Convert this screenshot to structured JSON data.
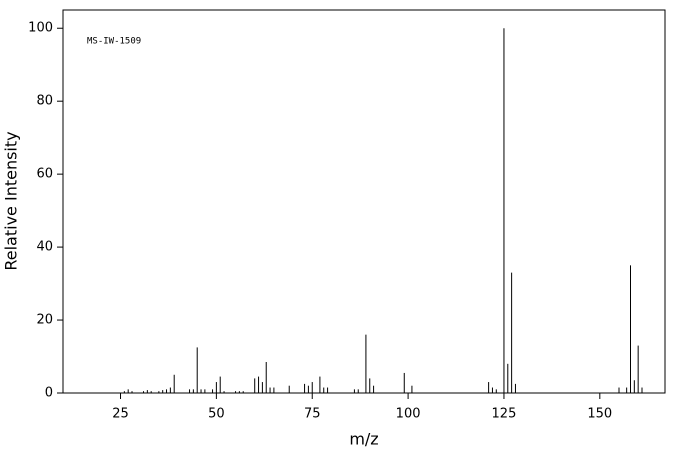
{
  "chart_data": {
    "type": "stick",
    "annotation": "MS-IW-1509",
    "x_label": "m/z",
    "y_label": "Relative Intensity",
    "xlim": [
      10,
      167
    ],
    "ylim": [
      0,
      105
    ],
    "xticks": [
      25,
      50,
      75,
      100,
      125,
      150
    ],
    "yticks": [
      0,
      20,
      40,
      60,
      80,
      100
    ],
    "color": "#000000",
    "x": [
      26,
      27,
      28,
      31,
      32,
      33,
      35,
      36,
      37,
      38,
      39,
      43,
      44,
      45,
      46,
      47,
      49,
      50,
      51,
      52,
      55,
      56,
      57,
      60,
      61,
      62,
      63,
      64,
      65,
      69,
      73,
      74,
      75,
      77,
      78,
      79,
      86,
      87,
      89,
      90,
      91,
      99,
      101,
      121,
      122,
      123,
      125,
      126,
      127,
      128,
      155,
      157,
      158,
      159,
      160,
      161
    ],
    "values": [
      0.5,
      1,
      0.5,
      0.5,
      0.8,
      0.5,
      0.5,
      0.8,
      1,
      1.5,
      5,
      1,
      1,
      12.5,
      1,
      1,
      1,
      3,
      4.5,
      0.5,
      0.5,
      0.5,
      0.5,
      4,
      4.5,
      3,
      8.5,
      1.5,
      1.5,
      2,
      2.5,
      2,
      3,
      4.5,
      1.5,
      1.5,
      1,
      1,
      16,
      4,
      2,
      5.5,
      2,
      3,
      1.5,
      1,
      100,
      8,
      33,
      2.5,
      1.5,
      1.5,
      35,
      3.5,
      13,
      1.5
    ]
  }
}
